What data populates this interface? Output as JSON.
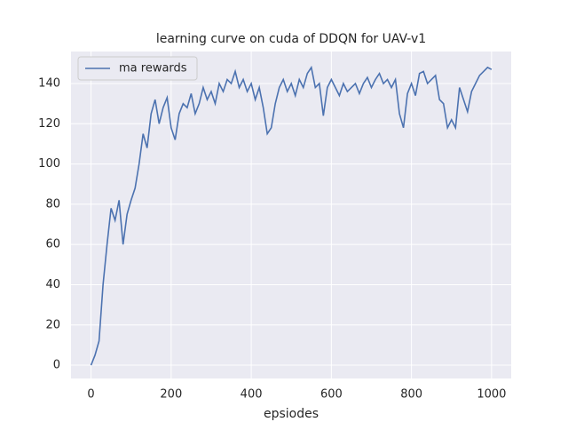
{
  "chart_data": {
    "type": "line",
    "title": "learning curve on cuda of DDQN for UAV-v1",
    "xlabel": "epsiodes",
    "x": [
      0,
      10,
      20,
      30,
      40,
      50,
      60,
      70,
      80,
      90,
      100,
      110,
      120,
      130,
      140,
      150,
      160,
      170,
      180,
      190,
      200,
      210,
      220,
      230,
      240,
      250,
      260,
      270,
      280,
      290,
      300,
      310,
      320,
      330,
      340,
      350,
      360,
      370,
      380,
      390,
      400,
      410,
      420,
      430,
      440,
      450,
      460,
      470,
      480,
      490,
      500,
      510,
      520,
      530,
      540,
      550,
      560,
      570,
      580,
      590,
      600,
      610,
      620,
      630,
      640,
      650,
      660,
      670,
      680,
      690,
      700,
      710,
      720,
      730,
      740,
      750,
      760,
      770,
      780,
      790,
      800,
      810,
      820,
      830,
      840,
      850,
      860,
      870,
      880,
      890,
      900,
      910,
      920,
      930,
      940,
      950,
      960,
      970,
      980,
      990,
      1000
    ],
    "series": [
      {
        "name": "ma rewards",
        "color": "#4c72b0",
        "values": [
          0,
          5,
          12,
          40,
          60,
          78,
          72,
          82,
          60,
          75,
          82,
          88,
          100,
          115,
          108,
          125,
          132,
          120,
          128,
          133,
          118,
          112,
          125,
          130,
          128,
          135,
          125,
          130,
          138,
          132,
          136,
          130,
          140,
          136,
          142,
          140,
          146,
          138,
          142,
          136,
          140,
          132,
          138,
          128,
          115,
          118,
          130,
          138,
          142,
          136,
          140,
          134,
          142,
          138,
          145,
          148,
          138,
          140,
          124,
          138,
          142,
          138,
          134,
          140,
          136,
          138,
          140,
          135,
          140,
          143,
          138,
          142,
          145,
          140,
          142,
          138,
          142,
          125,
          118,
          135,
          140,
          134,
          145,
          146,
          140,
          142,
          144,
          132,
          130,
          118,
          122,
          118,
          138,
          132,
          126,
          136,
          140,
          144,
          146,
          148,
          147
        ]
      }
    ],
    "xlim": [
      -50,
      1049
    ],
    "ylim": [
      -6.6,
      155.9
    ],
    "xticks": [
      0,
      200,
      400,
      600,
      800,
      1000
    ],
    "yticks": [
      0,
      20,
      40,
      60,
      80,
      100,
      120,
      140
    ],
    "grid": true,
    "legend": "upper left"
  }
}
